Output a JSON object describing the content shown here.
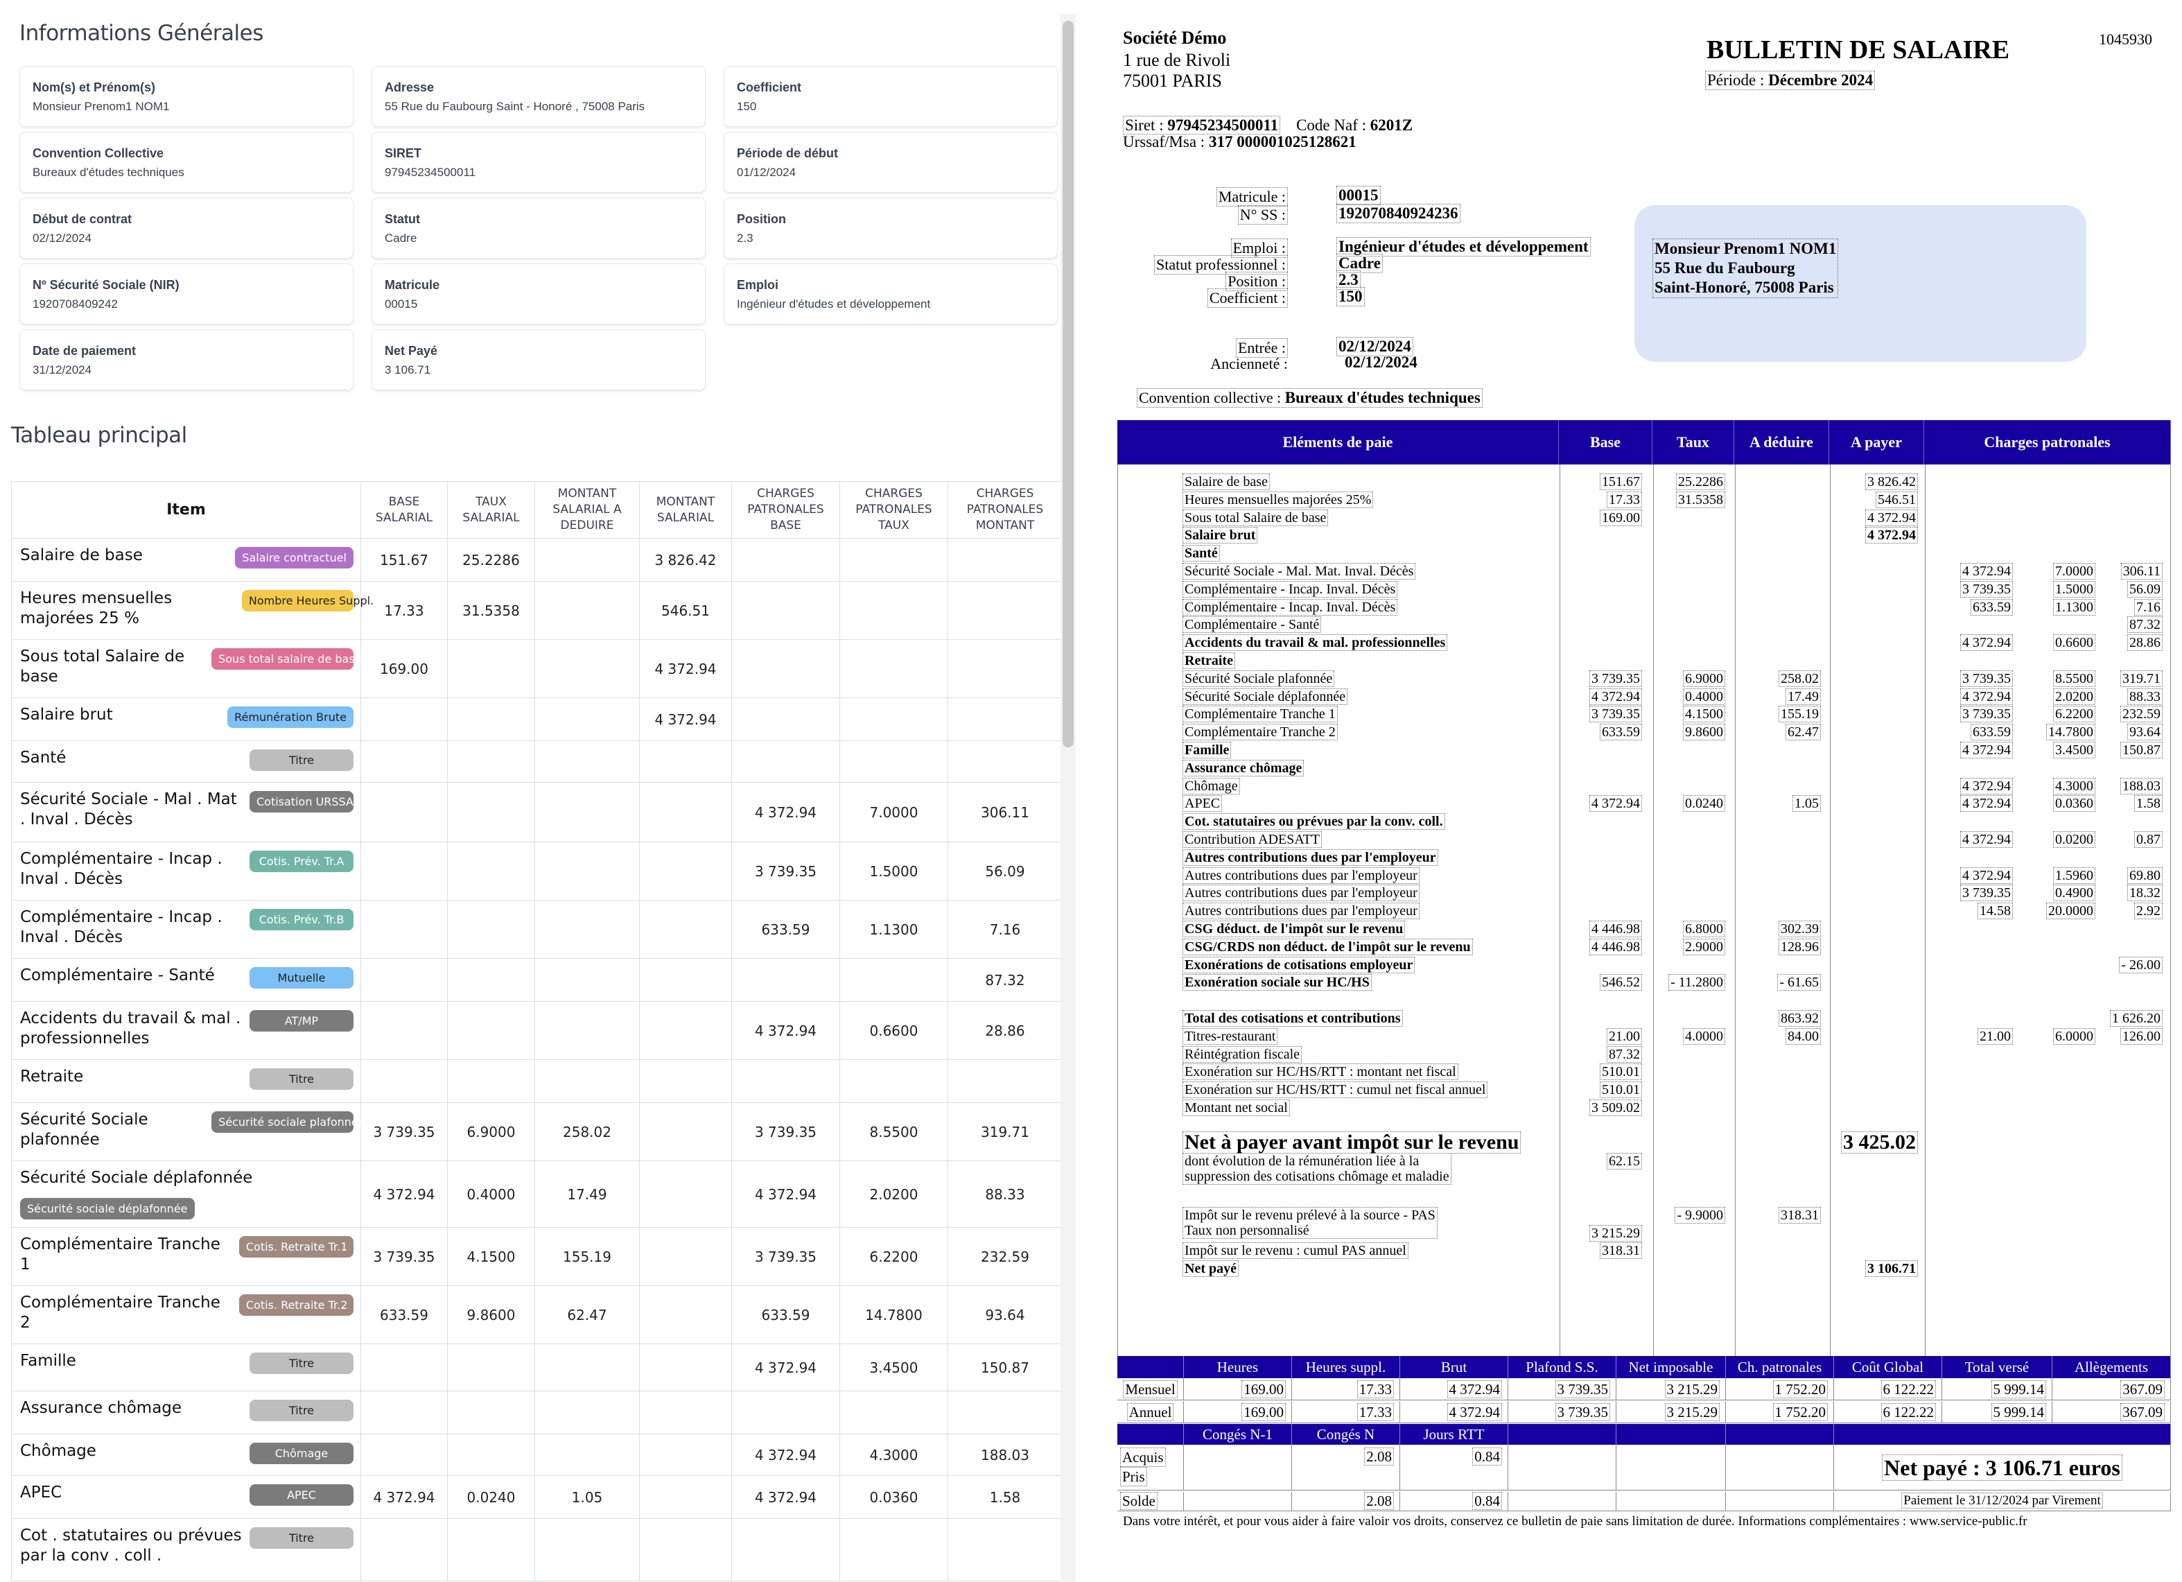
{
  "left": {
    "info_title": "Informations Générales",
    "info_cards": [
      {
        "label": "Nom(s) et Prénom(s)",
        "value": "Monsieur Prenom1 NOM1"
      },
      {
        "label": "Adresse",
        "value": "55 Rue du Faubourg Saint - Honoré , 75008 Paris"
      },
      {
        "label": "Coefficient",
        "value": "150"
      },
      {
        "label": "Convention Collective",
        "value": "Bureaux d'études techniques"
      },
      {
        "label": "SIRET",
        "value": "97945234500011"
      },
      {
        "label": "Période de début",
        "value": "01/12/2024"
      },
      {
        "label": "Début de contrat",
        "value": "02/12/2024"
      },
      {
        "label": "Statut",
        "value": "Cadre"
      },
      {
        "label": "Position",
        "value": "2.3"
      },
      {
        "label": "Nº Sécurité Sociale (NIR)",
        "value": "1920708409242"
      },
      {
        "label": "Matricule",
        "value": "00015"
      },
      {
        "label": "Emploi",
        "value": "Ingénieur d'études et développement"
      },
      {
        "label": "Date de paiement",
        "value": "31/12/2024"
      },
      {
        "label": "Net Payé",
        "value": "3 106.71"
      }
    ],
    "table_title": "Tableau principal",
    "columns": [
      "Item",
      "BASE SALARIAL",
      "TAUX SALARIAL",
      "MONTANT SALARIAL A DEDUIRE",
      "MONTANT SALARIAL",
      "CHARGES PATRONALES BASE",
      "CHARGES PATRONALES TAUX",
      "CHARGES PATRONALES MONTANT"
    ],
    "rows": [
      {
        "item": "Salaire de base",
        "badge": "Salaire contractuel",
        "badge_color": "#b070c8",
        "badge_text": "#ffffff",
        "values": [
          "151.67",
          "25.2286",
          "",
          "3 826.42",
          "",
          "",
          ""
        ]
      },
      {
        "item": "Heures mensuelles majorées 25 %",
        "badge": "Nombre Heures Suppl.",
        "badge_color": "#f2c94c",
        "badge_text": "#222222",
        "values": [
          "17.33",
          "31.5358",
          "",
          "546.51",
          "",
          "",
          ""
        ]
      },
      {
        "item": "Sous total Salaire de base",
        "badge": "Sous total salaire de base",
        "badge_color": "#e07093",
        "badge_text": "#ffffff",
        "values": [
          "169.00",
          "",
          "",
          "4 372.94",
          "",
          "",
          ""
        ]
      },
      {
        "item": "Salaire brut",
        "badge": "Rémunération Brute",
        "badge_color": "#7cc0f5",
        "badge_text": "#222222",
        "values": [
          "",
          "",
          "",
          "4 372.94",
          "",
          "",
          ""
        ]
      },
      {
        "item": "Santé",
        "badge": "Titre",
        "badge_color": "#bdbdbd",
        "badge_text": "#222222",
        "values": [
          "",
          "",
          "",
          "",
          "",
          "",
          ""
        ]
      },
      {
        "item": "Sécurité Sociale - Mal . Mat . Inval . Décès",
        "badge": "Cotisation URSSAF",
        "badge_color": "#7b7b7b",
        "badge_text": "#ffffff",
        "values": [
          "",
          "",
          "",
          "",
          "4 372.94",
          "7.0000",
          "306.11"
        ]
      },
      {
        "item": "Complémentaire - Incap . Inval . Décès",
        "badge": "Cotis. Prév. Tr.A",
        "badge_color": "#72b5a8",
        "badge_text": "#ffffff",
        "values": [
          "",
          "",
          "",
          "",
          "3 739.35",
          "1.5000",
          "56.09"
        ]
      },
      {
        "item": "Complémentaire - Incap . Inval . Décès",
        "badge": "Cotis. Prév. Tr.B",
        "badge_color": "#72b5a8",
        "badge_text": "#ffffff",
        "values": [
          "",
          "",
          "",
          "",
          "633.59",
          "1.1300",
          "7.16"
        ]
      },
      {
        "item": "Complémentaire - Santé",
        "badge": "Mutuelle",
        "badge_color": "#7cc0f5",
        "badge_text": "#222222",
        "values": [
          "",
          "",
          "",
          "",
          "",
          "",
          "87.32"
        ]
      },
      {
        "item": "Accidents du travail & mal . professionnelles",
        "badge": "AT/MP",
        "badge_color": "#7b7b7b",
        "badge_text": "#ffffff",
        "values": [
          "",
          "",
          "",
          "",
          "4 372.94",
          "0.6600",
          "28.86"
        ]
      },
      {
        "item": "Retraite",
        "badge": "Titre",
        "badge_color": "#bdbdbd",
        "badge_text": "#222222",
        "values": [
          "",
          "",
          "",
          "",
          "",
          "",
          ""
        ]
      },
      {
        "item": "Sécurité Sociale plafonnée",
        "badge": "Sécurité sociale plafonnée",
        "badge_color": "#7b7b7b",
        "badge_text": "#ffffff",
        "values": [
          "3 739.35",
          "6.9000",
          "258.02",
          "",
          "3 739.35",
          "8.5500",
          "319.71"
        ]
      },
      {
        "item": "Sécurité Sociale déplafonnée",
        "badge": "Sécurité sociale déplafonnée",
        "badge_color": "#7b7b7b",
        "badge_text": "#ffffff",
        "values": [
          "4 372.94",
          "0.4000",
          "17.49",
          "",
          "4 372.94",
          "2.0200",
          "88.33"
        ]
      },
      {
        "item": "Complémentaire Tranche 1",
        "badge": "Cotis. Retraite Tr.1",
        "badge_color": "#a08a80",
        "badge_text": "#ffffff",
        "values": [
          "3 739.35",
          "4.1500",
          "155.19",
          "",
          "3 739.35",
          "6.2200",
          "232.59"
        ]
      },
      {
        "item": "Complémentaire Tranche 2",
        "badge": "Cotis. Retraite Tr.2",
        "badge_color": "#a08a80",
        "badge_text": "#ffffff",
        "values": [
          "633.59",
          "9.8600",
          "62.47",
          "",
          "633.59",
          "14.7800",
          "93.64"
        ]
      },
      {
        "item": "Famille",
        "badge": "Titre",
        "badge_color": "#bdbdbd",
        "badge_text": "#222222",
        "values": [
          "",
          "",
          "",
          "",
          "4 372.94",
          "3.4500",
          "150.87"
        ]
      },
      {
        "item": "Assurance chômage",
        "badge": "Titre",
        "badge_color": "#bdbdbd",
        "badge_text": "#222222",
        "values": [
          "",
          "",
          "",
          "",
          "",
          "",
          ""
        ]
      },
      {
        "item": "Chômage",
        "badge": "Chômage",
        "badge_color": "#7b7b7b",
        "badge_text": "#ffffff",
        "values": [
          "",
          "",
          "",
          "",
          "4 372.94",
          "4.3000",
          "188.03"
        ]
      },
      {
        "item": "APEC",
        "badge": "APEC",
        "badge_color": "#7b7b7b",
        "badge_text": "#ffffff",
        "values": [
          "4 372.94",
          "0.0240",
          "1.05",
          "",
          "4 372.94",
          "0.0360",
          "1.58"
        ]
      },
      {
        "item": "Cot . statutaires ou prévues par la conv . coll .",
        "badge": "Titre",
        "badge_color": "#bdbdbd",
        "badge_text": "#222222",
        "values": [
          "",
          "",
          "",
          "",
          "",
          "",
          ""
        ]
      }
    ]
  },
  "payslip": {
    "company": {
      "name": "Société Démo",
      "address1": "1 rue de Rivoli",
      "address2": "75001 PARIS"
    },
    "title": "BULLETIN DE SALAIRE",
    "number": "1045930",
    "period_label": "Période :",
    "period": "Décembre 2024",
    "siret_label": "Siret :",
    "siret": "97945234500011",
    "naf_label": "Code Naf :",
    "naf": "6201Z",
    "urssaf_label": "Urssaf/Msa :",
    "urssaf": "317 000001025128621",
    "matricule_label": "Matricule :",
    "matricule": "00015",
    "ss_label": "N° SS :",
    "ss": "192070840924236",
    "emploi_label": "Emploi :",
    "emploi": "Ingénieur d'études et développement",
    "statut_label": "Statut professionnel :",
    "statut": "Cadre",
    "position_label": "Position :",
    "position": "2.3",
    "coef_label": "Coefficient :",
    "coef": "150",
    "entree_label": "Entrée :",
    "entree": "02/12/2024",
    "anciennete_label": "Ancienneté :",
    "anciennete": "02/12/2024",
    "convention_label": "Convention collective :",
    "convention": "Bureaux d'études techniques",
    "recipient": [
      "Monsieur Prenom1 NOM1",
      "55 Rue du Faubourg",
      "Saint-Honoré, 75008 Paris"
    ],
    "header_color": "#1700a0",
    "address_bg": "#dce4f7",
    "columns": [
      "Eléments de paie",
      "Base",
      "Taux",
      "A déduire",
      "A payer",
      "Charges patronales"
    ],
    "lines": [
      {
        "label": "Salaire de base",
        "base": "151.67",
        "taux": "25.2286",
        "payer": "3 826.42"
      },
      {
        "label": "Heures mensuelles majorées 25%",
        "base": "17.33",
        "taux": "31.5358",
        "payer": "546.51"
      },
      {
        "label": "Sous total Salaire de base",
        "base": "169.00",
        "payer": "4 372.94"
      },
      {
        "label": "Salaire brut",
        "bold": true,
        "payer": "4 372.94"
      },
      {
        "label": "Santé",
        "bold": true
      },
      {
        "label": "Sécurité Sociale - Mal. Mat. Inval. Décès",
        "cp_base": "4 372.94",
        "cp_taux": "7.0000",
        "cp_montant": "306.11"
      },
      {
        "label": "Complémentaire - Incap. Inval. Décès",
        "cp_base": "3 739.35",
        "cp_taux": "1.5000",
        "cp_montant": "56.09"
      },
      {
        "label": "Complémentaire - Incap. Inval. Décès",
        "cp_base": "633.59",
        "cp_taux": "1.1300",
        "cp_montant": "7.16"
      },
      {
        "label": "Complémentaire - Santé",
        "cp_montant": "87.32"
      },
      {
        "label": "Accidents du travail & mal. professionnelles",
        "bold": true,
        "cp_base": "4 372.94",
        "cp_taux": "0.6600",
        "cp_montant": "28.86"
      },
      {
        "label": "Retraite",
        "bold": true
      },
      {
        "label": "Sécurité Sociale plafonnée",
        "base": "3 739.35",
        "taux": "6.9000",
        "deduire": "258.02",
        "cp_base": "3 739.35",
        "cp_taux": "8.5500",
        "cp_montant": "319.71"
      },
      {
        "label": "Sécurité Sociale déplafonnée",
        "base": "4 372.94",
        "taux": "0.4000",
        "deduire": "17.49",
        "cp_base": "4 372.94",
        "cp_taux": "2.0200",
        "cp_montant": "88.33"
      },
      {
        "label": "Complémentaire Tranche 1",
        "base": "3 739.35",
        "taux": "4.1500",
        "deduire": "155.19",
        "cp_base": "3 739.35",
        "cp_taux": "6.2200",
        "cp_montant": "232.59"
      },
      {
        "label": "Complémentaire Tranche 2",
        "base": "633.59",
        "taux": "9.8600",
        "deduire": "62.47",
        "cp_base": "633.59",
        "cp_taux": "14.7800",
        "cp_montant": "93.64"
      },
      {
        "label": "Famille",
        "bold": true,
        "cp_base": "4 372.94",
        "cp_taux": "3.4500",
        "cp_montant": "150.87"
      },
      {
        "label": "Assurance chômage",
        "bold": true
      },
      {
        "label": "Chômage",
        "cp_base": "4 372.94",
        "cp_taux": "4.3000",
        "cp_montant": "188.03"
      },
      {
        "label": "APEC",
        "base": "4 372.94",
        "taux": "0.0240",
        "deduire": "1.05",
        "cp_base": "4 372.94",
        "cp_taux": "0.0360",
        "cp_montant": "1.58"
      },
      {
        "label": "Cot. statutaires ou prévues par la conv. coll.",
        "bold": true
      },
      {
        "label": "Contribution ADESATT",
        "cp_base": "4 372.94",
        "cp_taux": "0.0200",
        "cp_montant": "0.87"
      },
      {
        "label": "Autres contributions dues par l'employeur",
        "bold": true
      },
      {
        "label": "Autres contributions dues par l'employeur",
        "cp_base": "4 372.94",
        "cp_taux": "1.5960",
        "cp_montant": "69.80"
      },
      {
        "label": "Autres contributions dues par l'employeur",
        "cp_base": "3 739.35",
        "cp_taux": "0.4900",
        "cp_montant": "18.32"
      },
      {
        "label": "Autres contributions dues par l'employeur",
        "cp_base": "14.58",
        "cp_taux": "20.0000",
        "cp_montant": "2.92"
      },
      {
        "label": "CSG déduct. de l'impôt sur le revenu",
        "bold": true,
        "base": "4 446.98",
        "taux": "6.8000",
        "deduire": "302.39"
      },
      {
        "label": "CSG/CRDS non déduct. de l'impôt sur le revenu",
        "bold": true,
        "base": "4 446.98",
        "taux": "2.9000",
        "deduire": "128.96"
      },
      {
        "label": "Exonérations de cotisations employeur",
        "bold": true,
        "cp_montant": "- 26.00"
      },
      {
        "label": "Exonération sociale sur HC/HS",
        "bold": true,
        "base": "546.52",
        "taux": "- 11.2800",
        "deduire": "- 61.65"
      },
      {
        "label": "Total des cotisations et contributions",
        "bold": true,
        "deduire": "863.92",
        "cp_montant": "1 626.20"
      },
      {
        "label": "Titres-restaurant",
        "base": "21.00",
        "taux": "4.0000",
        "deduire": "84.00",
        "cp_base": "21.00",
        "cp_taux": "6.0000",
        "cp_montant": "126.00"
      },
      {
        "label": "Réintégration fiscale",
        "base": "87.32"
      },
      {
        "label": "Exonération sur HC/HS/RTT : montant net fiscal",
        "base": "510.01"
      },
      {
        "label": "Exonération sur HC/HS/RTT : cumul net fiscal annuel",
        "base": "510.01"
      },
      {
        "label": "Montant net social",
        "base": "3 509.02"
      },
      {
        "label": "Net à payer avant impôt sur le revenu",
        "big": true,
        "payer": "3 425.02"
      },
      {
        "label": "dont évolution de la rémunération liée à la",
        "label2": "suppression des cotisations chômage et maladie",
        "base": "62.15"
      },
      {
        "label": "Impôt sur le revenu prélevé à la source - PAS",
        "label2": "Taux non personnalisé",
        "base": "3 215.29",
        "taux": "- 9.9000",
        "deduire": "318.31"
      },
      {
        "label": "Impôt sur le revenu : cumul PAS annuel",
        "base": "318.31"
      },
      {
        "label": "Net payé",
        "bold": true,
        "payer": "3 106.71"
      }
    ],
    "totals": {
      "columns": [
        "Heures",
        "Heures suppl.",
        "Brut",
        "Plafond S.S.",
        "Net imposable",
        "Ch. patronales",
        "Coût Global",
        "Total versé",
        "Allègements"
      ],
      "rows": [
        {
          "label": "Mensuel",
          "values": [
            "169.00",
            "17.33",
            "4 372.94",
            "3 739.35",
            "3 215.29",
            "1 752.20",
            "6 122.22",
            "5 999.14",
            "367.09"
          ]
        },
        {
          "label": "Annuel",
          "values": [
            "169.00",
            "17.33",
            "4 372.94",
            "3 739.35",
            "3 215.29",
            "1 752.20",
            "6 122.22",
            "5 999.14",
            "367.09"
          ]
        }
      ]
    },
    "conges": {
      "columns": [
        "Congés N-1",
        "Congés N",
        "Jours RTT"
      ],
      "acquis_label": "Acquis",
      "acquis": [
        "",
        "2.08",
        "0.84"
      ],
      "pris_label": "Pris",
      "solde_label": "Solde",
      "solde": [
        "",
        "2.08",
        "0.84"
      ]
    },
    "net_paye": "Net payé : 3 106.71 euros",
    "paiement": "Paiement le 31/12/2024 par Virement",
    "footer": "Dans votre intérêt, et pour vous aider à faire valoir vos droits, conservez ce bulletin de paie sans limitation de durée. Informations complémentaires : www.service-public.fr"
  }
}
